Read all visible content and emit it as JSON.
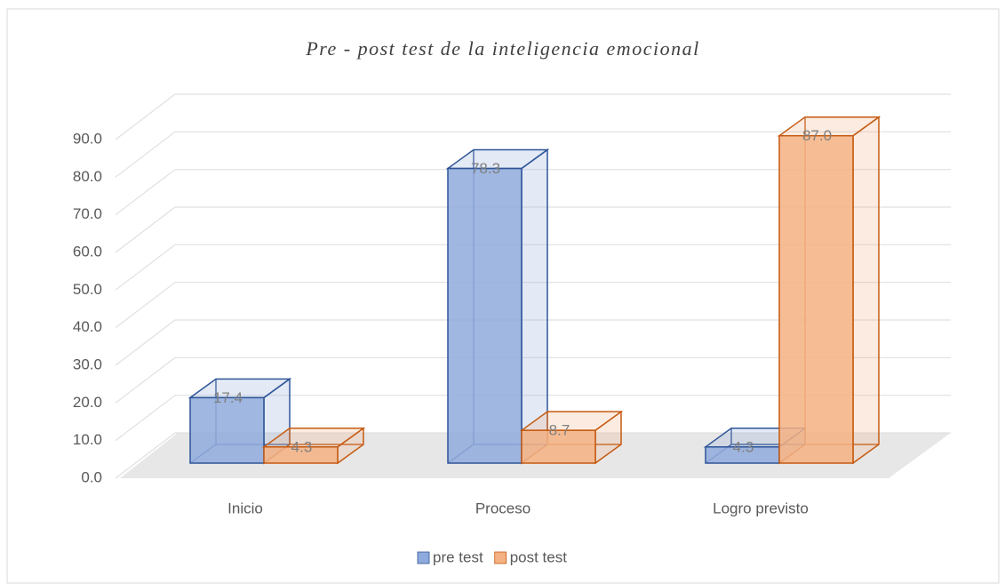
{
  "chart_data": {
    "type": "bar3d",
    "title": "Pre - post test de la inteligencia emocional",
    "categories": [
      "Inicio",
      "Proceso",
      "Logro previsto"
    ],
    "series": [
      {
        "name": "pre test",
        "color": "#8faadc",
        "edge": "#2f5597",
        "values": [
          17.4,
          78.3,
          4.3
        ],
        "value_labels": [
          "17.4",
          "78.3",
          "4.3"
        ]
      },
      {
        "name": "post test",
        "color": "#f4b183",
        "edge": "#c55a11",
        "values": [
          4.3,
          8.7,
          87.0
        ],
        "value_labels": [
          "4.3",
          "8.7",
          "87.0"
        ]
      }
    ],
    "ylim": [
      0,
      90
    ],
    "yticks": [
      {
        "value": 0,
        "label": "0.0"
      },
      {
        "value": 10,
        "label": "10.0"
      },
      {
        "value": 20,
        "label": "20.0"
      },
      {
        "value": 30,
        "label": "30.0"
      },
      {
        "value": 40,
        "label": "40.0"
      },
      {
        "value": 50,
        "label": "50.0"
      },
      {
        "value": 60,
        "label": "60.0"
      },
      {
        "value": 70,
        "label": "70.0"
      },
      {
        "value": 80,
        "label": "80.0"
      },
      {
        "value": 90,
        "label": "90.0"
      }
    ],
    "grid": true,
    "legend": "bottom"
  }
}
